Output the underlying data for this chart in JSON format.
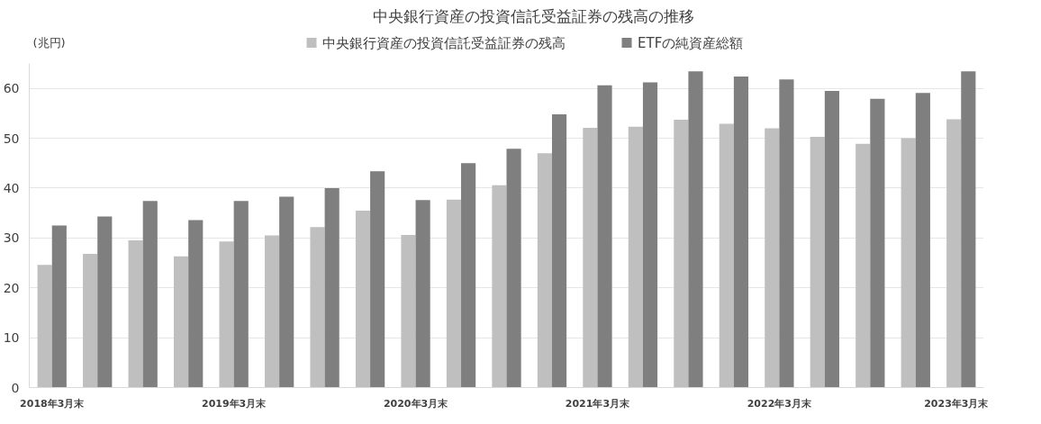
{
  "chart_data": {
    "type": "bar",
    "title": "中央銀行資産の投資信託受益証券の残高の推移",
    "ylabel": "(兆円)",
    "categories": [
      "2018年3月末",
      null,
      null,
      null,
      "2019年3月末",
      null,
      null,
      null,
      "2020年3月末",
      null,
      null,
      null,
      "2021年3月末",
      null,
      null,
      null,
      "2022年3月末",
      null,
      null,
      null,
      "2023年3月末"
    ],
    "series": [
      {
        "name": "中央銀行資産の投資信託受益証券の残高",
        "color": "#bfbfbf",
        "values": [
          24.6,
          26.8,
          29.5,
          26.3,
          29.3,
          30.5,
          32.2,
          35.5,
          30.6,
          37.7,
          40.6,
          47.0,
          52.1,
          52.3,
          53.7,
          52.9,
          52.0,
          50.3,
          48.9,
          50.0,
          53.8
        ]
      },
      {
        "name": "ETFの純資産総額",
        "color": "#7f7f7f",
        "values": [
          32.5,
          34.3,
          37.4,
          33.6,
          37.4,
          38.3,
          40.0,
          43.4,
          37.6,
          45.0,
          47.9,
          54.8,
          60.6,
          61.2,
          63.4,
          62.4,
          61.8,
          59.5,
          57.9,
          59.1,
          63.4
        ]
      }
    ],
    "ylim": [
      0,
      65
    ],
    "yticks": [
      0,
      10,
      20,
      30,
      40,
      50,
      60
    ],
    "grid": "y",
    "legend": "top"
  }
}
